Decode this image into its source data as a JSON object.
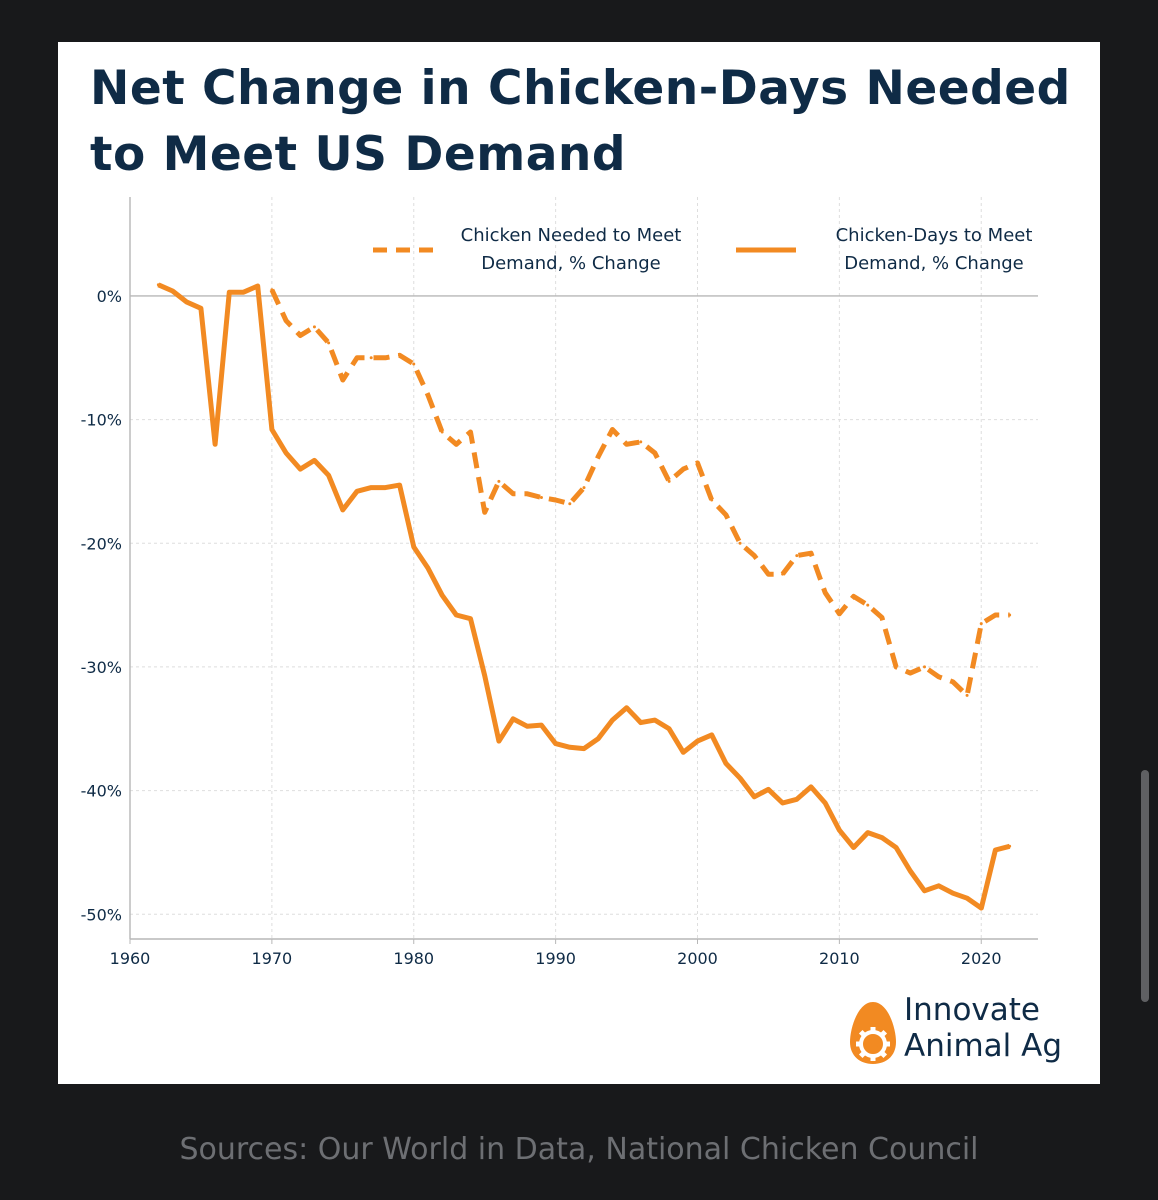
{
  "chart_data": {
    "type": "line",
    "title": "Net Change in Chicken-Days Needed to Meet US Demand",
    "xlabel": "",
    "ylabel": "",
    "xlim": [
      1960,
      2024
    ],
    "ylim": [
      -52,
      8
    ],
    "x_ticks": [
      1960,
      1970,
      1980,
      1990,
      2000,
      2010,
      2020
    ],
    "y_ticks": [
      {
        "value": 0,
        "label": "0%"
      },
      {
        "value": -10,
        "label": "-10%"
      },
      {
        "value": -20,
        "label": "-20%"
      },
      {
        "value": -30,
        "label": "-30%"
      },
      {
        "value": -40,
        "label": "-40%"
      },
      {
        "value": -50,
        "label": "-50%"
      }
    ],
    "legend_position": "top-right",
    "series": [
      {
        "name": "Chicken Needed to Meet Demand, % Change",
        "legend_lines": [
          "Chicken Needed to Meet",
          "Demand, % Change"
        ],
        "style": "dashed",
        "x": [
          1970,
          1971,
          1972,
          1973,
          1974,
          1975,
          1976,
          1977,
          1978,
          1979,
          1980,
          1981,
          1982,
          1983,
          1984,
          1985,
          1986,
          1987,
          1988,
          1989,
          1990,
          1991,
          1992,
          1993,
          1994,
          1995,
          1996,
          1997,
          1998,
          1999,
          2000,
          2001,
          2002,
          2003,
          2004,
          2005,
          2006,
          2007,
          2008,
          2009,
          2010,
          2011,
          2012,
          2013,
          2014,
          2015,
          2016,
          2017,
          2018,
          2019,
          2020,
          2021,
          2022
        ],
        "values": [
          0.5,
          -2,
          -3.2,
          -2.5,
          -3.8,
          -6.8,
          -5,
          -5,
          -5,
          -4.8,
          -5.5,
          -8,
          -11,
          -12,
          -11,
          -17.5,
          -15,
          -16,
          -16,
          -16.3,
          -16.5,
          -16.8,
          -15.5,
          -13,
          -10.8,
          -12,
          -11.8,
          -12.7,
          -15,
          -14,
          -13.5,
          -16.5,
          -17.7,
          -20,
          -21,
          -22.5,
          -22.5,
          -21,
          -20.8,
          -24,
          -25.7,
          -24.3,
          -25,
          -26,
          -30,
          -30.5,
          -30,
          -30.8,
          -31.2,
          -32.3,
          -26.5,
          -25.8,
          -25.8
        ]
      },
      {
        "name": "Chicken-Days to Meet Demand, % Change",
        "legend_lines": [
          "Chicken-Days to Meet",
          "Demand, % Change"
        ],
        "style": "solid",
        "x": [
          1962,
          1963,
          1964,
          1965,
          1966,
          1967,
          1968,
          1969,
          1970,
          1971,
          1972,
          1973,
          1974,
          1975,
          1976,
          1977,
          1978,
          1979,
          1980,
          1981,
          1982,
          1983,
          1984,
          1985,
          1986,
          1987,
          1988,
          1989,
          1990,
          1991,
          1992,
          1993,
          1994,
          1995,
          1996,
          1997,
          1998,
          1999,
          2000,
          2001,
          2002,
          2003,
          2004,
          2005,
          2006,
          2007,
          2008,
          2009,
          2010,
          2011,
          2012,
          2013,
          2014,
          2015,
          2016,
          2017,
          2018,
          2019,
          2020,
          2021,
          2022
        ],
        "values": [
          0.9,
          0.4,
          -0.5,
          -1,
          -12,
          0.3,
          0.3,
          0.8,
          -10.8,
          -12.7,
          -14,
          -13.3,
          -14.5,
          -17.3,
          -15.8,
          -15.5,
          -15.5,
          -15.3,
          -20.3,
          -22,
          -24.2,
          -25.8,
          -26.1,
          -30.7,
          -36,
          -34.2,
          -34.8,
          -34.7,
          -36.2,
          -36.5,
          -36.6,
          -35.8,
          -34.3,
          -33.3,
          -34.5,
          -34.3,
          -35,
          -36.9,
          -36,
          -35.5,
          -37.8,
          -39,
          -40.5,
          -39.9,
          -41,
          -40.7,
          -39.7,
          -41,
          -43.2,
          -44.6,
          -43.4,
          -43.8,
          -44.6,
          -46.5,
          -48.1,
          -47.7,
          -48.3,
          -48.7,
          -49.5,
          -44.8,
          -44.5
        ]
      }
    ],
    "colors": {
      "line": "#f28a22",
      "text": "#0f2b46",
      "grid": "#dedede",
      "axis": "#b7b7b7"
    }
  },
  "brand": {
    "line1": "Innovate",
    "line2": "Animal Ag"
  },
  "footer": {
    "sources": "Sources: Our World in Data, National Chicken Council"
  }
}
